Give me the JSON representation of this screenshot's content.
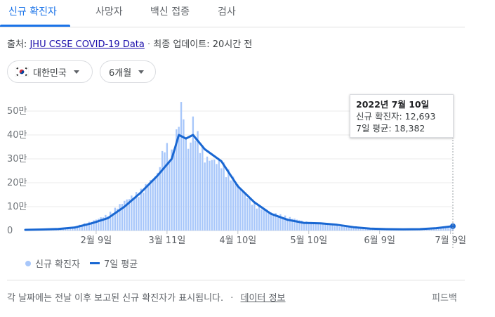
{
  "tabs": [
    {
      "label": "신규 확진자",
      "active": true
    },
    {
      "label": "사망자"
    },
    {
      "label": "백신 접종"
    },
    {
      "label": "검사"
    }
  ],
  "source": {
    "prefix": "출처:",
    "link": "JHU CSSE COVID-19 Data",
    "separator": "·",
    "updated": "최종 업데이트: 20시간 전"
  },
  "filters": {
    "region": "대한민국",
    "region_icon": "korea-flag-icon",
    "period": "6개월"
  },
  "tooltip": {
    "date": "2022년 7월 10일",
    "cases_line": "신규 확진자: 12,693",
    "avg_line": "7일 평균: 18,382"
  },
  "legend": {
    "cases": "신규 확진자",
    "avg": "7일 평균"
  },
  "footer": {
    "text": "각 날짜에는 전날 이후 보고된 신규 확진자가 표시됩니다.",
    "separator": "·",
    "link": "데이터 정보",
    "feedback": "피드백"
  },
  "colors": {
    "accent": "#1a73e8",
    "bars": "#a8c7fa",
    "line": "#1967d2"
  },
  "chart_data": {
    "type": "bar",
    "x_tick_labels": [
      "2월 9일",
      "3월 11일",
      "4월 10일",
      "5월 10일",
      "6월 9일",
      "7월 9일"
    ],
    "y_tick_labels": [
      "0",
      "10만",
      "20만",
      "30만",
      "40만",
      "50만"
    ],
    "ylim": [
      0,
      560000
    ],
    "grid": true,
    "legend_position": "bottom-left",
    "series": [
      {
        "name": "신규 확진자",
        "kind": "bar",
        "x": [
          "2022-01-10",
          "2022-01-17",
          "2022-01-24",
          "2022-01-31",
          "2022-02-07",
          "2022-02-14",
          "2022-02-21",
          "2022-02-28",
          "2022-03-07",
          "2022-03-10",
          "2022-03-13",
          "2022-03-16",
          "2022-03-17",
          "2022-03-20",
          "2022-03-22",
          "2022-03-27",
          "2022-04-03",
          "2022-04-10",
          "2022-04-17",
          "2022-04-24",
          "2022-05-01",
          "2022-05-08",
          "2022-05-15",
          "2022-05-22",
          "2022-05-29",
          "2022-06-05",
          "2022-06-12",
          "2022-06-19",
          "2022-06-26",
          "2022-07-03",
          "2022-07-10"
        ],
        "values": [
          4000,
          6000,
          8000,
          18000,
          40000,
          70000,
          130000,
          175000,
          250000,
          380000,
          340000,
          475000,
          560000,
          350000,
          480000,
          320000,
          300000,
          200000,
          115000,
          80000,
          60000,
          40000,
          30000,
          20000,
          15000,
          12000,
          8000,
          7000,
          9000,
          11000,
          12693
        ]
      },
      {
        "name": "7일 평균",
        "kind": "line",
        "x": [
          "2022-01-10",
          "2022-01-17",
          "2022-01-24",
          "2022-01-31",
          "2022-02-07",
          "2022-02-14",
          "2022-02-21",
          "2022-02-28",
          "2022-03-07",
          "2022-03-13",
          "2022-03-16",
          "2022-03-19",
          "2022-03-22",
          "2022-03-27",
          "2022-04-03",
          "2022-04-10",
          "2022-04-17",
          "2022-04-24",
          "2022-05-01",
          "2022-05-08",
          "2022-05-15",
          "2022-05-22",
          "2022-05-29",
          "2022-06-05",
          "2022-06-12",
          "2022-06-19",
          "2022-06-26",
          "2022-07-03",
          "2022-07-10"
        ],
        "values": [
          3000,
          4500,
          6500,
          13000,
          30000,
          52000,
          100000,
          160000,
          230000,
          300000,
          400000,
          385000,
          400000,
          340000,
          290000,
          185000,
          118000,
          70000,
          45000,
          32000,
          30000,
          24000,
          14000,
          8000,
          6000,
          5000,
          6000,
          10000,
          18382
        ]
      }
    ]
  }
}
